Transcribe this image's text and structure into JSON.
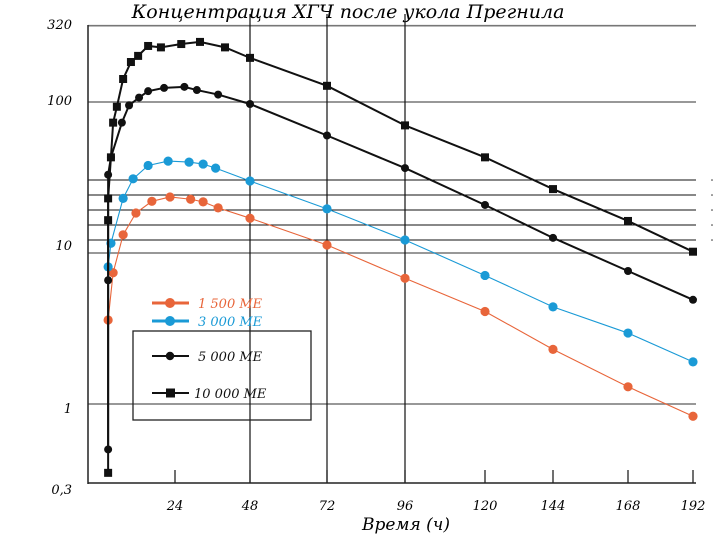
{
  "chart_data": {
    "type": "line",
    "title": "Концентрация ХГЧ после укола Прегнила",
    "xlabel": "Время (ч)",
    "ylabel": "",
    "x_ticks": [
      24,
      48,
      72,
      96,
      120,
      144,
      168,
      192
    ],
    "y_ticks": [
      "320",
      "100",
      "10",
      "1",
      "0,3"
    ],
    "y_tick_values": [
      320,
      100,
      10,
      1,
      0.3
    ],
    "y_scale": "log",
    "xlim": [
      0,
      192
    ],
    "ylim": [
      0.3,
      320
    ],
    "legend_placement": "lower-left",
    "grid": "horizontal at 320, 100, 10, 1; vertical at 48, 72, 96",
    "series": [
      {
        "name": "1 500 МЕ",
        "color": "#e8653a",
        "marker": "circle",
        "points": [
          [
            2.6,
            3.6
          ],
          [
            4.2,
            7.4
          ],
          [
            7.4,
            13.2
          ],
          [
            11.5,
            18.4
          ],
          [
            16.6,
            22
          ],
          [
            22.4,
            23.5
          ],
          [
            29,
            22.7
          ],
          [
            33,
            21.8
          ],
          [
            37.8,
            19.9
          ],
          [
            48,
            17
          ],
          [
            72,
            11.3
          ],
          [
            96,
            6.8
          ],
          [
            120,
            4.1
          ],
          [
            144,
            2.3
          ],
          [
            168,
            1.3
          ],
          [
            192,
            0.83
          ]
        ]
      },
      {
        "name": "3 000 МЕ",
        "color": "#1a9ad6",
        "marker": "circle",
        "points": [
          [
            2.6,
            8.1
          ],
          [
            3.5,
            11.6
          ],
          [
            7.4,
            23
          ],
          [
            10.6,
            31
          ],
          [
            15.4,
            38
          ],
          [
            21.8,
            40.6
          ],
          [
            28.5,
            40
          ],
          [
            33,
            38.8
          ],
          [
            37,
            36.5
          ],
          [
            48,
            30
          ],
          [
            72,
            19.6
          ],
          [
            96,
            12.2
          ],
          [
            120,
            7.1
          ],
          [
            144,
            4.4
          ],
          [
            168,
            2.95
          ],
          [
            192,
            1.9
          ]
        ]
      },
      {
        "name": "5 000 МЕ",
        "color": "#111111",
        "marker": "circle",
        "points": [
          [
            2.6,
            0.5
          ],
          [
            2.6,
            6.6
          ],
          [
            2.6,
            33
          ],
          [
            3.5,
            43
          ],
          [
            7,
            73
          ],
          [
            9.3,
            95
          ],
          [
            12.5,
            107
          ],
          [
            15.4,
            118
          ],
          [
            20.5,
            124
          ],
          [
            27,
            126
          ],
          [
            31,
            120
          ],
          [
            37.8,
            112
          ],
          [
            48,
            97
          ],
          [
            72,
            60
          ],
          [
            96,
            36.5
          ],
          [
            120,
            20.8
          ],
          [
            144,
            12.6
          ],
          [
            168,
            7.6
          ],
          [
            192,
            4.9
          ]
        ]
      },
      {
        "name": "10 000 МЕ",
        "color": "#111111",
        "marker": "square",
        "points": [
          [
            2.6,
            0.35
          ],
          [
            2.6,
            16.5
          ],
          [
            2.6,
            23
          ],
          [
            3.5,
            43
          ],
          [
            4.2,
            73
          ],
          [
            5.4,
            93
          ],
          [
            7.4,
            142
          ],
          [
            9.9,
            184
          ],
          [
            12.2,
            202
          ],
          [
            15.4,
            235
          ],
          [
            19.5,
            230
          ],
          [
            26,
            242
          ],
          [
            32,
            250
          ],
          [
            40,
            230
          ],
          [
            48,
            196
          ],
          [
            72,
            128
          ],
          [
            96,
            70
          ],
          [
            120,
            43
          ],
          [
            144,
            26.5
          ],
          [
            168,
            16.3
          ],
          [
            192,
            10.2
          ]
        ]
      }
    ]
  }
}
